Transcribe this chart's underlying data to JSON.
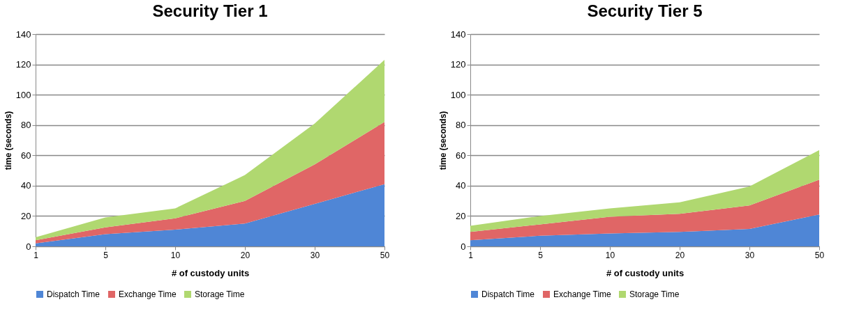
{
  "chart_data": [
    {
      "type": "area",
      "title": "Security Tier 1",
      "xlabel": "# of custody units",
      "ylabel": "time (seconds)",
      "categories": [
        "1",
        "5",
        "10",
        "20",
        "30",
        "50"
      ],
      "stacked": true,
      "ylim": [
        0,
        140
      ],
      "yticks": [
        0,
        20,
        40,
        60,
        80,
        100,
        120,
        140
      ],
      "grid": "y",
      "legend": "bottom",
      "series": [
        {
          "name": "Dispatch Time",
          "color": "#4f86d6",
          "values": [
            2,
            8,
            11,
            15,
            28,
            41
          ]
        },
        {
          "name": "Exchange Time",
          "color": "#e06666",
          "values": [
            2,
            4.5,
            7.5,
            15,
            26,
            41
          ]
        },
        {
          "name": "Storage Time",
          "color": "#b0d870",
          "values": [
            2,
            6.5,
            6.5,
            17,
            27,
            41
          ]
        }
      ]
    },
    {
      "type": "area",
      "title": "Security Tier 5",
      "xlabel": "# of custody units",
      "ylabel": "time (seconds)",
      "categories": [
        "1",
        "5",
        "10",
        "20",
        "30",
        "50"
      ],
      "stacked": true,
      "ylim": [
        0,
        140
      ],
      "yticks": [
        0,
        20,
        40,
        60,
        80,
        100,
        120,
        140
      ],
      "grid": "y",
      "legend": "bottom",
      "series": [
        {
          "name": "Dispatch Time",
          "color": "#4f86d6",
          "values": [
            4,
            7,
            8.5,
            9.5,
            11.5,
            21
          ]
        },
        {
          "name": "Exchange Time",
          "color": "#e06666",
          "values": [
            5.5,
            7.5,
            11,
            12,
            15.5,
            23
          ]
        },
        {
          "name": "Storage Time",
          "color": "#b0d870",
          "values": [
            4,
            5.5,
            5.5,
            7.5,
            12.5,
            19.5
          ]
        }
      ]
    }
  ]
}
